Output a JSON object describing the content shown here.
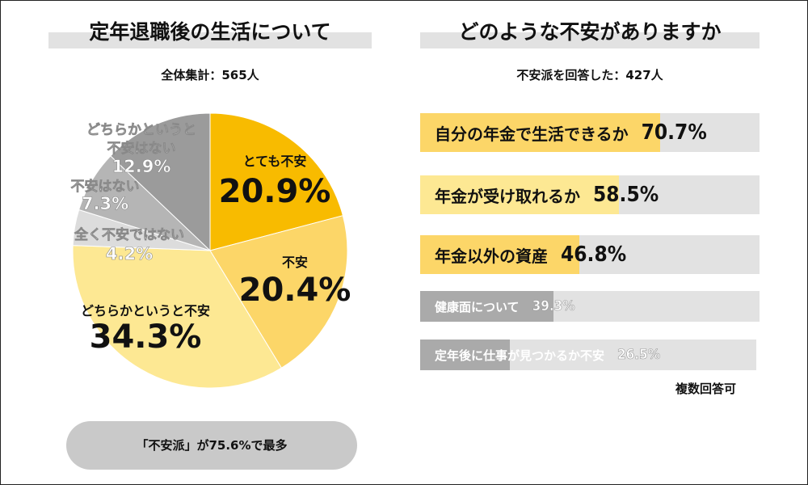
{
  "left": {
    "title": "定年退職後の生活について",
    "subtitle": "全体集計：565人",
    "summary": "「不安派」が75.6%で最多"
  },
  "right": {
    "title": "どのような不安がありますか",
    "subtitle": "不安派を回答した：427人",
    "note": "複数回答可"
  },
  "chart_data": [
    {
      "type": "pie",
      "start": "top",
      "direction": "clockwise",
      "slices": [
        {
          "label": "とても不安",
          "value": 20.9,
          "display": "20.9%",
          "color": "#f8bb00"
        },
        {
          "label": "不安",
          "value": 20.4,
          "display": "20.4%",
          "color": "#fcd668"
        },
        {
          "label": "どちらかというと不安",
          "value": 34.3,
          "display": "34.3%",
          "color": "#fde893"
        },
        {
          "label": "全く不安ではない",
          "value": 4.2,
          "display": "4.2%",
          "color": "#dcdcdc"
        },
        {
          "label": "不安はない",
          "value": 7.3,
          "display": "7.3%",
          "color": "#b5b5b5"
        },
        {
          "label": "どちらかというと不安はない",
          "value": 12.9,
          "display": "12.9%",
          "color": "#9b9b9b"
        }
      ]
    },
    {
      "type": "bar",
      "orientation": "horizontal",
      "xlim": [
        0,
        100
      ],
      "categories": [
        "自分の年金で生活できるか",
        "年金が受け取れるか",
        "年金以外の資産",
        "健康面について",
        "定年後に仕事が見つかるか不安"
      ],
      "values": [
        70.7,
        58.5,
        46.8,
        39.3,
        26.5
      ],
      "display": [
        "70.7%",
        "58.5%",
        "46.8%",
        "39.3%",
        "26.5%"
      ],
      "colors": [
        "#fcd668",
        "#fde893",
        "#fcd668",
        "#aaaaaa",
        "#aaaaaa"
      ]
    }
  ]
}
